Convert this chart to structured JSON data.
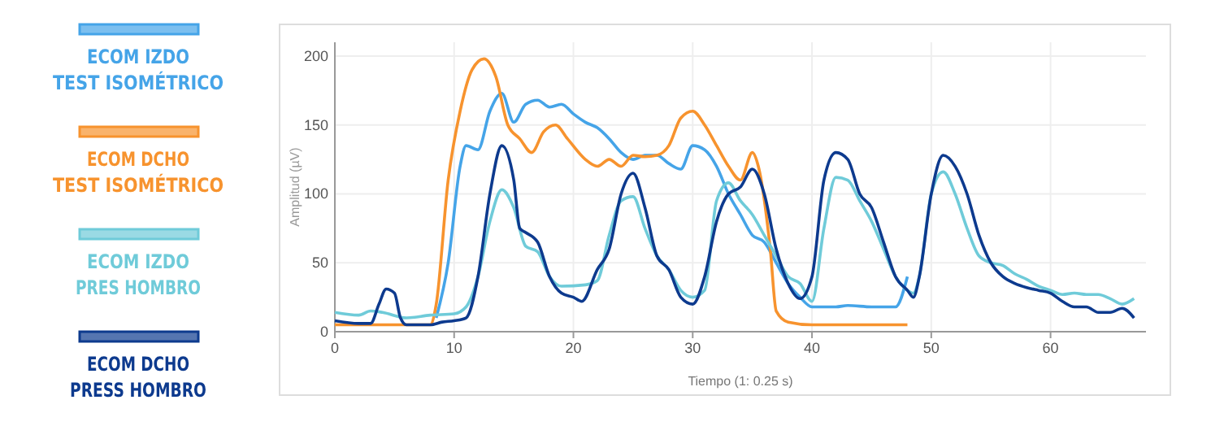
{
  "chart_data": {
    "type": "line",
    "xlabel": "Tiempo (1: 0.25 s)",
    "ylabel": "Amplitud (µV)",
    "xlim": [
      0,
      68
    ],
    "ylim": [
      0,
      210
    ],
    "xticks": [
      0,
      10,
      20,
      30,
      40,
      50,
      60
    ],
    "yticks": [
      0,
      50,
      100,
      150,
      200
    ],
    "grid": true,
    "legend": "left",
    "marker": "none",
    "line_style": "solid",
    "series": [
      {
        "name": "ECOM IZDO TEST ISOMÉTRICO",
        "color": "#45a4e8",
        "x": [
          8.5,
          9.5,
          10.5,
          11,
          12,
          13,
          14,
          15,
          16,
          17,
          18,
          19,
          20,
          21,
          22,
          23,
          24,
          25,
          26,
          27,
          28,
          29,
          30,
          31,
          32,
          33,
          34,
          35,
          36,
          37,
          38,
          39,
          40,
          42,
          43,
          45,
          47,
          48
        ],
        "values": [
          10,
          50,
          120,
          135,
          132,
          160,
          173,
          152,
          165,
          168,
          163,
          165,
          158,
          152,
          148,
          140,
          130,
          125,
          128,
          128,
          122,
          118,
          135,
          132,
          120,
          100,
          85,
          70,
          65,
          50,
          35,
          25,
          18,
          18,
          19,
          18,
          18,
          40
        ]
      },
      {
        "name": "ECOM DCHO TEST ISOMÉTRICO",
        "color": "#f7932e",
        "x": [
          0,
          8,
          8.5,
          9.5,
          10.5,
          11.5,
          12.5,
          13.5,
          14.5,
          15.5,
          16.5,
          17.5,
          18.5,
          19.5,
          21,
          22,
          23,
          24,
          25,
          26,
          27,
          28,
          29,
          30,
          31,
          32,
          33,
          34,
          35,
          35.5,
          36.5,
          37,
          38,
          40,
          48
        ],
        "values": [
          5,
          5,
          20,
          110,
          160,
          190,
          198,
          185,
          150,
          140,
          130,
          145,
          150,
          140,
          125,
          120,
          125,
          120,
          128,
          127,
          128,
          135,
          155,
          160,
          150,
          135,
          120,
          110,
          130,
          120,
          60,
          15,
          7,
          5,
          5
        ]
      },
      {
        "name": "ECOM IZDO PRES HOMBRO",
        "color": "#6fcbd9",
        "x": [
          0,
          2,
          3,
          4,
          6,
          8,
          10,
          11,
          12,
          13,
          14,
          15,
          16,
          17,
          18,
          19,
          21,
          22,
          23,
          24,
          25,
          26,
          27,
          28,
          29,
          30,
          31,
          32,
          33,
          34,
          35,
          36,
          37,
          38,
          39,
          40,
          41,
          42,
          43,
          44,
          45,
          46,
          47,
          48,
          48.5,
          49,
          50,
          51,
          52,
          53,
          54,
          55,
          56,
          57,
          58,
          59,
          60,
          61,
          62,
          63,
          64,
          65,
          66,
          67
        ],
        "values": [
          14,
          12,
          15,
          14,
          10,
          12,
          13,
          18,
          40,
          80,
          103,
          90,
          62,
          58,
          40,
          33,
          34,
          37,
          70,
          95,
          98,
          75,
          55,
          45,
          30,
          25,
          30,
          95,
          108,
          95,
          85,
          70,
          55,
          40,
          35,
          22,
          75,
          112,
          110,
          95,
          80,
          60,
          40,
          30,
          28,
          40,
          100,
          116,
          100,
          75,
          55,
          50,
          48,
          42,
          38,
          33,
          30,
          27,
          28,
          27,
          27,
          24,
          20,
          24
        ]
      },
      {
        "name": "ECOM DCHO PRESS HOMBRO",
        "color": "#0d3a8e",
        "x": [
          0,
          2,
          3,
          3.7,
          4.3,
          5,
          5.5,
          6,
          8,
          9,
          10,
          11,
          12,
          13,
          14,
          15,
          15.5,
          16,
          17,
          18,
          19,
          20,
          20.7,
          22,
          23,
          24,
          25,
          26,
          27,
          28,
          29,
          30,
          31,
          32,
          33,
          34,
          35,
          36,
          37,
          38,
          39,
          40,
          41,
          42,
          43,
          44,
          45,
          46,
          47,
          48,
          48.5,
          49,
          50,
          51,
          52,
          53,
          54,
          55,
          56,
          57,
          58,
          59,
          60,
          61,
          62,
          63,
          64,
          65,
          66,
          67
        ],
        "values": [
          8,
          6,
          6,
          20,
          31,
          28,
          10,
          5,
          5,
          7,
          8,
          10,
          40,
          100,
          135,
          110,
          75,
          72,
          65,
          40,
          28,
          25,
          22,
          45,
          60,
          100,
          115,
          90,
          55,
          45,
          25,
          20,
          40,
          80,
          100,
          105,
          118,
          100,
          60,
          35,
          24,
          40,
          110,
          130,
          125,
          100,
          90,
          65,
          40,
          30,
          25,
          40,
          100,
          128,
          120,
          100,
          70,
          50,
          40,
          35,
          32,
          30,
          28,
          22,
          18,
          18,
          14,
          14,
          17,
          10
        ]
      }
    ]
  }
}
